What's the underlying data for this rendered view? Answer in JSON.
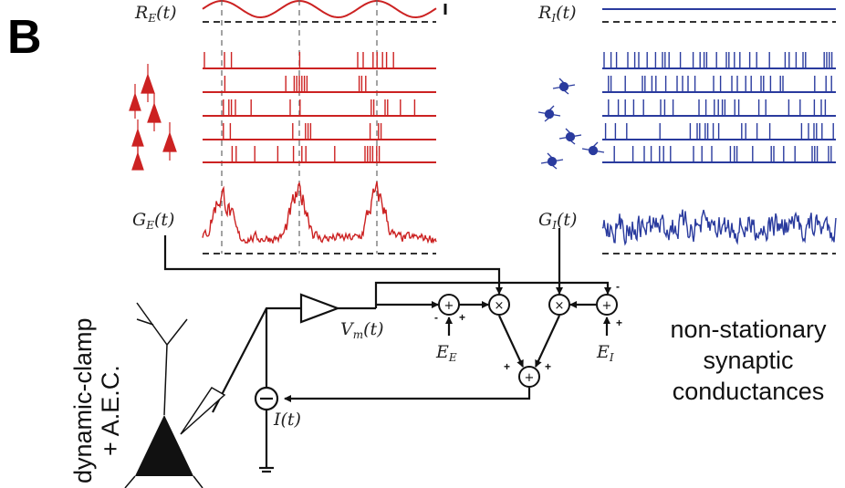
{
  "panel_label": "B",
  "labels": {
    "re": "R_E(t)",
    "ri": "R_I(t)",
    "ge": "G_E(t)",
    "gi": "G_I(t)",
    "vm": "V_m(t)",
    "ee": "E_E",
    "ei": "E_I",
    "it": "I(t)"
  },
  "side_caption": [
    "dynamic-clamp",
    "+ A.E.C."
  ],
  "caption": [
    "non-stationary",
    "synaptic",
    "conductances"
  ],
  "operators": {
    "sum": "+",
    "product": "×",
    "minus": "-",
    "plus": "+"
  },
  "colors": {
    "excitatory": "#cc2222",
    "inhibitory": "#2a3b9e",
    "ink": "#111111",
    "dash": "#444444"
  }
}
